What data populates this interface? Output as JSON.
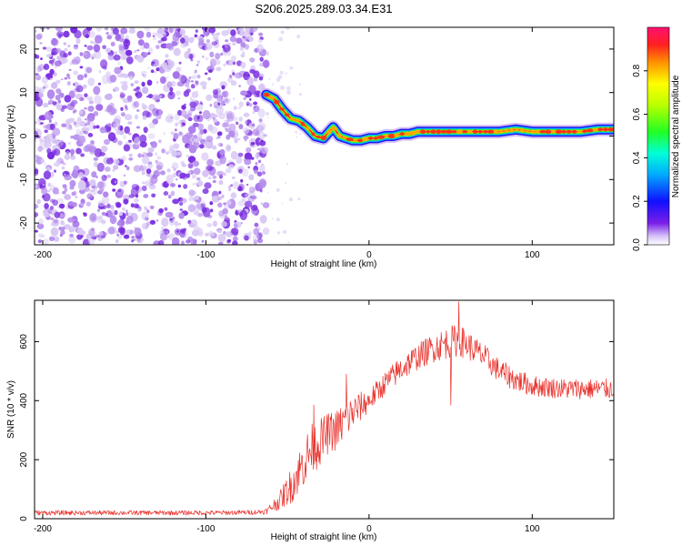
{
  "title": "S206.2025.289.03.34.E31",
  "chart_data": [
    {
      "type": "heatmap",
      "name": "spectrogram",
      "xlabel": "Height of straight line (km)",
      "ylabel": "Frequency (Hz)",
      "xlim": [
        -205,
        150
      ],
      "ylim": [
        -25,
        25
      ],
      "xticks": [
        -200,
        -100,
        0,
        100
      ],
      "xtick_labels": [
        "-200",
        "-100",
        "0",
        "100"
      ],
      "yticks": [
        -20,
        -10,
        0,
        10,
        20
      ],
      "ytick_labels": [
        "-20",
        "-10",
        "0",
        "10",
        "20"
      ],
      "noise_region_x": [
        -205,
        -63
      ],
      "ridge": {
        "x": [
          -63,
          -58,
          -53,
          -48,
          -43,
          -38,
          -33,
          -28,
          -22,
          -18,
          -14,
          -10,
          -5,
          0,
          5,
          10,
          15,
          20,
          25,
          30,
          40,
          50,
          60,
          70,
          80,
          90,
          100,
          110,
          120,
          130,
          140,
          150
        ],
        "y": [
          9.5,
          8.5,
          6,
          4,
          3.5,
          2,
          0,
          -0.5,
          2,
          0,
          -0.5,
          -1,
          -1,
          -0.5,
          -0.5,
          0,
          0,
          0.5,
          0.5,
          1,
          1,
          1,
          1,
          1,
          1,
          1.5,
          1,
          1,
          1,
          1,
          1.5,
          1.5
        ]
      },
      "colorbar": {
        "label": "Normalized spectral amplitude",
        "range": [
          0,
          1
        ],
        "ticks": [
          0.0,
          0.2,
          0.4,
          0.6,
          0.8
        ],
        "tick_labels": [
          "0.0",
          "0.2",
          "0.4",
          "0.6",
          "0.8"
        ]
      }
    },
    {
      "type": "line",
      "name": "snr",
      "xlabel": "Height of straight line (km)",
      "ylabel": "SNR (10 * v/v)",
      "xlim": [
        -205,
        150
      ],
      "ylim": [
        0,
        740
      ],
      "xticks": [
        -200,
        -100,
        0,
        100
      ],
      "xtick_labels": [
        "-200",
        "-100",
        "0",
        "100"
      ],
      "yticks": [
        0,
        200,
        400,
        600
      ],
      "ytick_labels": [
        "0",
        "200",
        "400",
        "600"
      ],
      "series": [
        {
          "name": "SNR",
          "color": "#e8302a",
          "x": [
            -205,
            -180,
            -150,
            -120,
            -90,
            -70,
            -63,
            -55,
            -48,
            -42,
            -36,
            -30,
            -25,
            -20,
            -15,
            -10,
            -5,
            0,
            10,
            20,
            30,
            40,
            50,
            55,
            60,
            70,
            80,
            90,
            100,
            110,
            120,
            130,
            140,
            150
          ],
          "y": [
            20,
            20,
            20,
            20,
            20,
            22,
            25,
            60,
            110,
            170,
            230,
            260,
            290,
            300,
            330,
            360,
            380,
            400,
            460,
            510,
            550,
            580,
            600,
            605,
            590,
            550,
            500,
            470,
            450,
            445,
            440,
            440,
            440,
            440
          ],
          "noise_amplitude": [
            8,
            8,
            8,
            8,
            8,
            8,
            10,
            30,
            60,
            80,
            90,
            80,
            70,
            70,
            70,
            60,
            50,
            40,
            40,
            45,
            45,
            50,
            55,
            55,
            50,
            45,
            40,
            40,
            35,
            35,
            35,
            35,
            35,
            35
          ]
        }
      ],
      "annotations": [
        {
          "x": -34,
          "y": 385,
          "text": ""
        },
        {
          "x": -14,
          "y": 490,
          "text": ""
        },
        {
          "x": 55,
          "y": 735,
          "text": ""
        },
        {
          "x": 50,
          "y": 385,
          "text": ""
        }
      ]
    }
  ],
  "colors": {
    "noise_light": "#d8c8f4",
    "noise_mid": "#b48cec",
    "noise_dark": "#7a2ee0",
    "snr_line": "#e8302a"
  }
}
